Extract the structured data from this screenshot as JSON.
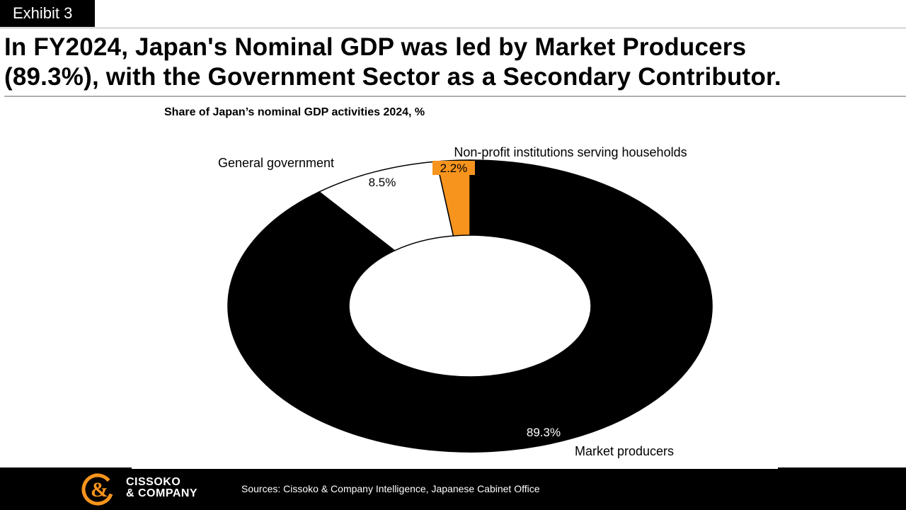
{
  "exhibit": {
    "label": "Exhibit 3"
  },
  "headline": {
    "line1": "In FY2024, Japan's Nominal GDP was led by Market Producers",
    "line2": "(89.3%), with the Government Sector as a Secondary Contributor."
  },
  "chart_data": {
    "type": "pie",
    "title": "Share of Japan’s nominal GDP activities 2024, %",
    "slices": [
      {
        "label": "Market producers",
        "value": 89.3,
        "value_label": "89.3%",
        "color": "#000000"
      },
      {
        "label": "General government",
        "value": 8.5,
        "value_label": "8.5%",
        "color": "#ffffff"
      },
      {
        "label": "Non-profit institutions serving households",
        "value": 2.2,
        "value_label": "2.2%",
        "color": "#f7941d"
      }
    ],
    "legend": "none"
  },
  "footer": {
    "brand_line1": "CISSOKO",
    "brand_line2": "& COMPANY",
    "sources": "Sources: Cissoko & Company Intelligence, Japanese Cabinet Office",
    "accent_color": "#f7941d"
  }
}
